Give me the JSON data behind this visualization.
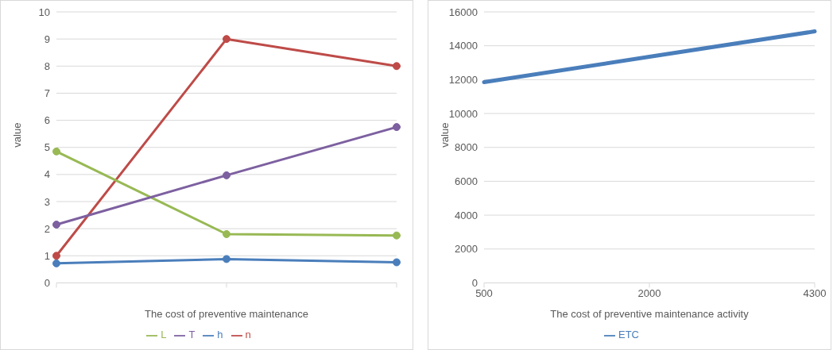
{
  "chart_data": [
    {
      "type": "line",
      "xlabel": "The cost of preventive maintenance",
      "ylabel": "value",
      "categories": [
        null,
        null,
        null
      ],
      "ylim": [
        0,
        10
      ],
      "yticks": [
        0,
        1,
        2,
        3,
        4,
        5,
        6,
        7,
        8,
        9,
        10
      ],
      "grid": "y",
      "legend": "bottom",
      "marker": "circle",
      "line_style": "solid",
      "series": [
        {
          "name": "h",
          "color": "#4a7ebb",
          "values": [
            0.72,
            0.88,
            0.76
          ]
        },
        {
          "name": "n",
          "color": "#be4b48",
          "values": [
            1,
            9,
            8
          ]
        },
        {
          "name": "L",
          "color": "#98b954",
          "values": [
            4.85,
            1.8,
            1.75
          ]
        },
        {
          "name": "T",
          "color": "#7d60a0",
          "values": [
            2.15,
            3.97,
            5.75
          ]
        }
      ]
    },
    {
      "type": "line",
      "xlabel": "The cost of preventive maintenance activity",
      "ylabel": "value",
      "categories": [
        "500",
        "2000",
        "4300"
      ],
      "ylim": [
        0,
        16000
      ],
      "yticks": [
        0,
        2000,
        4000,
        6000,
        8000,
        10000,
        12000,
        14000,
        16000
      ],
      "grid": "y",
      "legend": "bottom",
      "marker": "none",
      "line_style": "solid",
      "series": [
        {
          "name": "ETC",
          "color": "#4a7ebb",
          "values": [
            11850,
            13350,
            14850
          ]
        }
      ]
    }
  ]
}
